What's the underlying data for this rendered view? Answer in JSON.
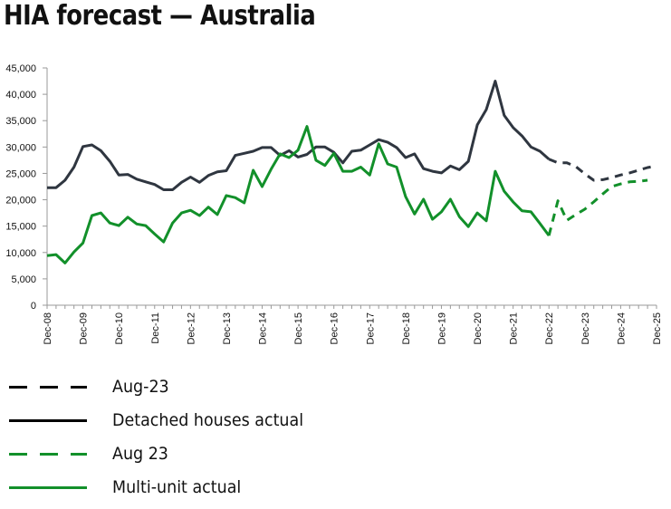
{
  "title": "HIA forecast — Australia",
  "colors": {
    "detached": "#2f3640",
    "multi_unit": "#12902a",
    "axis": "#999999",
    "text": "#111111"
  },
  "chart_data": {
    "type": "line",
    "title": "HIA forecast — Australia",
    "xlabel": "",
    "ylabel": "",
    "ylim": [
      0,
      45000
    ],
    "y_ticks": [
      0,
      5000,
      10000,
      15000,
      20000,
      25000,
      30000,
      35000,
      40000,
      45000
    ],
    "y_tick_labels": [
      "0",
      "5,000",
      "10,000",
      "15,000",
      "20,000",
      "25,000",
      "30,000",
      "35,000",
      "40,000",
      "45,000"
    ],
    "x_tick_labels": [
      "Dec-08",
      "Dec-09",
      "Dec-10",
      "Dec-11",
      "Dec-12",
      "Dec-13",
      "Dec-14",
      "Dec-15",
      "Dec-16",
      "Dec-17",
      "Dec-18",
      "Dec-19",
      "Dec-20",
      "Dec-21",
      "Dec-22",
      "Dec-23",
      "Dec-24",
      "Dec-25"
    ],
    "x_frequency": "quarterly",
    "x_start": "Dec-08",
    "x_end": "Dec-25",
    "grid": false,
    "legend_position": "bottom-left",
    "series": [
      {
        "name": "Aug-23",
        "group": "detached",
        "style": "dashed",
        "start_index": 56,
        "values": [
          27700,
          27000,
          27000,
          26300,
          24900,
          23700,
          23800,
          24200,
          24700,
          25100,
          25600,
          26100,
          26400
        ]
      },
      {
        "name": "Detached houses actual",
        "group": "detached",
        "style": "solid",
        "start_index": 0,
        "values": [
          22300,
          22300,
          23700,
          26200,
          30100,
          30400,
          29300,
          27300,
          24700,
          24800,
          23900,
          23400,
          22900,
          21900,
          21900,
          23300,
          24300,
          23300,
          24600,
          25300,
          25500,
          28400,
          28800,
          29200,
          29900,
          29900,
          28400,
          29300,
          28100,
          28600,
          30000,
          30000,
          29000,
          27000,
          29200,
          29400,
          30400,
          31400,
          30900,
          29900,
          28000,
          28700,
          25900,
          25400,
          25100,
          26400,
          25700,
          27300,
          34200,
          37100,
          42500,
          36000,
          33700,
          32100,
          30000,
          29200,
          27700
        ]
      },
      {
        "name": "Aug 23",
        "group": "multi_unit",
        "style": "dashed",
        "start_index": 56,
        "values": [
          13200,
          19800,
          16100,
          17200,
          18200,
          19600,
          21100,
          22500,
          23000,
          23400,
          23500,
          23700
        ]
      },
      {
        "name": "Multi-unit actual",
        "group": "multi_unit",
        "style": "solid",
        "start_index": 0,
        "values": [
          9400,
          9600,
          8000,
          10100,
          11800,
          17000,
          17500,
          15600,
          15100,
          16700,
          15400,
          15100,
          13500,
          12000,
          15600,
          17500,
          18000,
          17000,
          18600,
          17200,
          20800,
          20400,
          19400,
          25600,
          22500,
          25800,
          28700,
          28000,
          29400,
          33900,
          27500,
          26500,
          28800,
          25400,
          25400,
          26200,
          24700,
          30600,
          26800,
          26200,
          20600,
          17300,
          20100,
          16300,
          17700,
          20100,
          16800,
          14900,
          17500,
          16000,
          25400,
          21600,
          19600,
          17900,
          17700,
          15500,
          13200
        ]
      }
    ]
  },
  "legend": [
    {
      "label": "Aug-23",
      "group": "detached",
      "style": "dashed"
    },
    {
      "label": "Detached houses actual",
      "group": "detached",
      "style": "solid"
    },
    {
      "label": "Aug 23",
      "group": "multi_unit",
      "style": "dashed"
    },
    {
      "label": "Multi-unit actual",
      "group": "multi_unit",
      "style": "solid"
    }
  ]
}
